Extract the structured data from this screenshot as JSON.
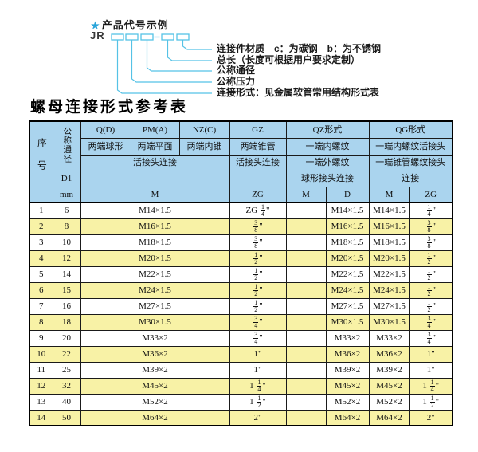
{
  "diagram": {
    "star_icon": "★",
    "heading": "产品代号示例",
    "prefix": "JR",
    "labels": [
      "连接件材质　c：为碳钢　b：为不锈钢",
      "总长（长度可根据用户要求定制）",
      "公称通径",
      "公称压力",
      "连接形式：见金属软管常用结构形式表"
    ]
  },
  "table": {
    "title": "螺母连接形式参考表",
    "header": {
      "seq": "序号",
      "dn": "公称通径",
      "col_q": "Q(D)",
      "col_pm": "PM(A)",
      "col_nz": "NZ(C)",
      "col_gz": "GZ",
      "col_qz": "QZ形式",
      "col_qg": "QG形式",
      "q_desc": "两端球形",
      "pm_desc": "两端平面",
      "nz_desc": "两端内锥",
      "gz_desc": "两端锥管",
      "qz_desc1": "一端内螺纹",
      "qg_desc1": "一端内螺纹活接头",
      "left_conn": "活接头连接",
      "gz_conn": "活接头连接",
      "qz_desc2": "一端外螺纹",
      "qg_desc2": "一端锥管螺纹接头",
      "d1": "D1",
      "qz_conn": "球形接头连接",
      "qg_conn": "连接",
      "mm": "mm",
      "m": "M",
      "zg": "ZG",
      "qz_m": "M",
      "qz_d": "D",
      "qg_m": "M",
      "qg_zg": "ZG"
    },
    "rows": [
      {
        "no": "1",
        "dn": "6",
        "m": "M14×1.5",
        "gz": "ZG 1/4\"",
        "qz_m": "",
        "qz_d": "M14×1.5",
        "qg_m": "M14×1.5",
        "qg_zg": "1/4\""
      },
      {
        "no": "2",
        "dn": "8",
        "m": "M16×1.5",
        "gz": "3/8\"",
        "qz_m": "",
        "qz_d": "M16×1.5",
        "qg_m": "M16×1.5",
        "qg_zg": "3/8\""
      },
      {
        "no": "3",
        "dn": "10",
        "m": "M18×1.5",
        "gz": "3/8\"",
        "qz_m": "",
        "qz_d": "M18×1.5",
        "qg_m": "M18×1.5",
        "qg_zg": "3/8\""
      },
      {
        "no": "4",
        "dn": "12",
        "m": "M20×1.5",
        "gz": "1/2\"",
        "qz_m": "",
        "qz_d": "M20×1.5",
        "qg_m": "M20×1.5",
        "qg_zg": "1/2\""
      },
      {
        "no": "5",
        "dn": "14",
        "m": "M22×1.5",
        "gz": "1/2\"",
        "qz_m": "",
        "qz_d": "M22×1.5",
        "qg_m": "M22×1.5",
        "qg_zg": "1/2\""
      },
      {
        "no": "6",
        "dn": "15",
        "m": "M24×1.5",
        "gz": "1/2\"",
        "qz_m": "",
        "qz_d": "M24×1.5",
        "qg_m": "M24×1.5",
        "qg_zg": "1/2\""
      },
      {
        "no": "7",
        "dn": "16",
        "m": "M27×1.5",
        "gz": "1/2\"",
        "qz_m": "",
        "qz_d": "M27×1.5",
        "qg_m": "M27×1.5",
        "qg_zg": "1/2\""
      },
      {
        "no": "8",
        "dn": "18",
        "m": "M30×1.5",
        "gz": "3/4\"",
        "qz_m": "",
        "qz_d": "M30×1.5",
        "qg_m": "M30×1.5",
        "qg_zg": "3/4\""
      },
      {
        "no": "9",
        "dn": "20",
        "m": "M33×2",
        "gz": "3/4\"",
        "qz_m": "",
        "qz_d": "M33×2",
        "qg_m": "M33×2",
        "qg_zg": "3/4\""
      },
      {
        "no": "10",
        "dn": "22",
        "m": "M36×2",
        "gz": "1\"",
        "qz_m": "",
        "qz_d": "M36×2",
        "qg_m": "M36×2",
        "qg_zg": "1\""
      },
      {
        "no": "11",
        "dn": "25",
        "m": "M39×2",
        "gz": "1\"",
        "qz_m": "",
        "qz_d": "M39×2",
        "qg_m": "M39×2",
        "qg_zg": "1\""
      },
      {
        "no": "12",
        "dn": "32",
        "m": "M45×2",
        "gz": "1 1/4\"",
        "qz_m": "",
        "qz_d": "M45×2",
        "qg_m": "M45×2",
        "qg_zg": "1 1/4\""
      },
      {
        "no": "13",
        "dn": "40",
        "m": "M52×2",
        "gz": "1 1/2\"",
        "qz_m": "",
        "qz_d": "M52×2",
        "qg_m": "M52×2",
        "qg_zg": "1 1/2\""
      },
      {
        "no": "14",
        "dn": "50",
        "m": "M64×2",
        "gz": "2\"",
        "qz_m": "",
        "qz_d": "M64×2",
        "qg_m": "M64×2",
        "qg_zg": "2\""
      }
    ]
  },
  "colors": {
    "header_blue": "#aad4ee",
    "row_yellow": "#f8f2a6",
    "line_cyan": "#55c2e6",
    "star_blue": "#2aa5da",
    "border": "#000000"
  }
}
